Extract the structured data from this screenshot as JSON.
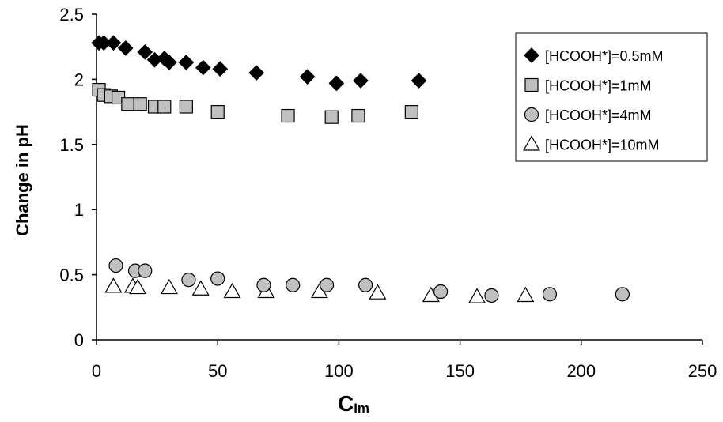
{
  "chart_data": {
    "type": "scatter",
    "xlabel": "C",
    "xlabel_sub": "Im",
    "ylabel": "Change in pH",
    "xlim": [
      0,
      250
    ],
    "ylim": [
      0,
      2.5
    ],
    "x_ticks": [
      0,
      50,
      100,
      150,
      200,
      250
    ],
    "y_ticks": [
      0,
      0.5,
      1,
      1.5,
      2,
      2.5
    ],
    "y_tick_labels": [
      "0",
      "0.5",
      "1",
      "1.5",
      "2",
      "2.5"
    ],
    "grid": false,
    "legend_position": "top-right",
    "series": [
      {
        "name": "[HCOOH*]=0.5mM",
        "marker": "diamond",
        "color": "#000000",
        "x": [
          1,
          3,
          7,
          12,
          20,
          24,
          28,
          30,
          37,
          44,
          51,
          66,
          87,
          99,
          109,
          133
        ],
        "y": [
          2.28,
          2.28,
          2.28,
          2.24,
          2.21,
          2.15,
          2.16,
          2.13,
          2.13,
          2.09,
          2.08,
          2.05,
          2.02,
          1.97,
          1.99,
          1.99
        ]
      },
      {
        "name": "[HCOOH*]=1mM",
        "marker": "square",
        "color": "#c0c0c0",
        "x": [
          1,
          3,
          6,
          9,
          13,
          18,
          24,
          28,
          37,
          50,
          79,
          97,
          108,
          130
        ],
        "y": [
          1.92,
          1.88,
          1.87,
          1.86,
          1.81,
          1.81,
          1.79,
          1.79,
          1.79,
          1.75,
          1.72,
          1.71,
          1.72,
          1.75
        ]
      },
      {
        "name": "[HCOOH*]=4mM",
        "marker": "circle",
        "color": "#c0c0c0",
        "x": [
          8,
          16,
          20,
          38,
          50,
          69,
          81,
          95,
          111,
          142,
          163,
          187,
          217
        ],
        "y": [
          0.57,
          0.53,
          0.53,
          0.46,
          0.47,
          0.42,
          0.42,
          0.42,
          0.42,
          0.37,
          0.34,
          0.35,
          0.35
        ]
      },
      {
        "name": "[HCOOH*]=10mM",
        "marker": "triangle",
        "color": "#ffffff",
        "x": [
          7,
          15,
          17,
          30,
          43,
          56,
          70,
          92,
          116,
          138,
          157,
          177
        ],
        "y": [
          0.41,
          0.41,
          0.4,
          0.4,
          0.39,
          0.37,
          0.37,
          0.37,
          0.36,
          0.34,
          0.33,
          0.34
        ]
      }
    ]
  }
}
